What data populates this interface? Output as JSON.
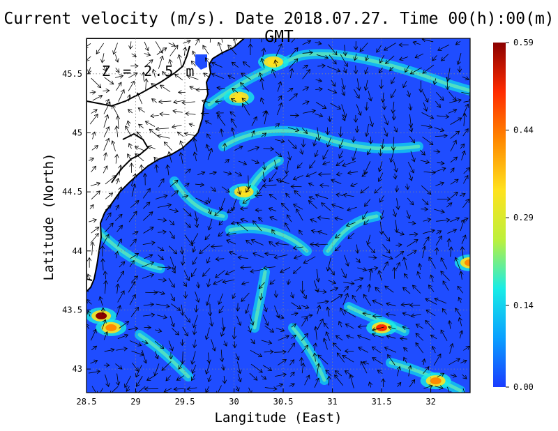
{
  "chart_data": {
    "type": "heatmap",
    "title": "Current velocity (m/s). Date 2018.07.27. Time 00(h):00(m) GMT",
    "xlabel": "Langitude (East)",
    "ylabel": "Latitude (North)",
    "annotation": "Z = 2.5 m",
    "xlim": [
      28.5,
      32.4
    ],
    "ylim": [
      42.8,
      45.8
    ],
    "x_ticks": [
      "28.5",
      "29",
      "29.5",
      "30",
      "30.5",
      "31",
      "31.5",
      "32"
    ],
    "x_tick_values": [
      28.5,
      29,
      29.5,
      30,
      30.5,
      31,
      31.5,
      32
    ],
    "y_ticks": [
      "43",
      "43.5",
      "44",
      "44.5",
      "45",
      "45.5"
    ],
    "y_tick_values": [
      43,
      43.5,
      44,
      44.5,
      45,
      45.5
    ],
    "grid": true,
    "colorbar": {
      "ticks": [
        "0.59",
        "0.44",
        "0.29",
        "0.14",
        "0.00"
      ],
      "tick_values": [
        0.59,
        0.44,
        0.29,
        0.14,
        0.0
      ],
      "min": 0.0,
      "max": 0.59,
      "colors": [
        "#1a3cff",
        "#0aa0ff",
        "#19ece6",
        "#bdf03c",
        "#ffe21e",
        "#ff8a00",
        "#ff2b00",
        "#8a0000"
      ]
    },
    "hotspots": [
      {
        "lon": 28.65,
        "lat": 43.45,
        "value": 0.55
      },
      {
        "lon": 28.75,
        "lat": 43.35,
        "value": 0.45
      },
      {
        "lon": 31.5,
        "lat": 43.35,
        "value": 0.5
      },
      {
        "lon": 32.05,
        "lat": 42.9,
        "value": 0.42
      },
      {
        "lon": 30.05,
        "lat": 45.3,
        "value": 0.36
      },
      {
        "lon": 30.1,
        "lat": 44.5,
        "value": 0.34
      },
      {
        "lon": 30.4,
        "lat": 45.6,
        "value": 0.32
      },
      {
        "lon": 32.4,
        "lat": 43.9,
        "value": 0.38
      }
    ],
    "colors": {
      "land": "#ffffff",
      "coast": "#000000",
      "grid": "#888888",
      "arrow": "#000000"
    }
  }
}
